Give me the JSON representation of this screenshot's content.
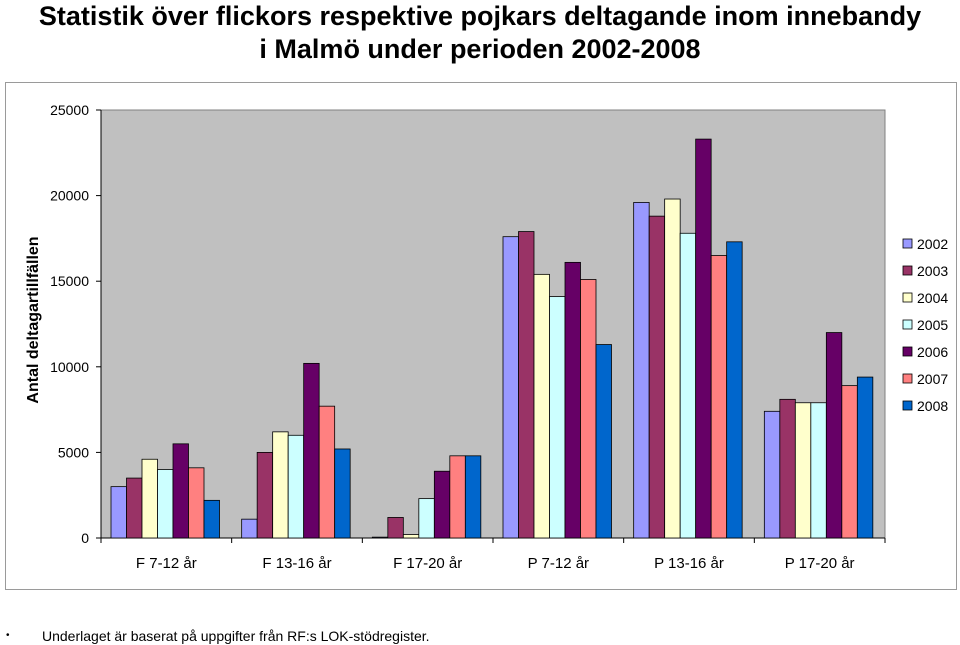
{
  "chart_data": {
    "type": "bar",
    "title_line1": "Statistik över flickors respektive pojkars deltagande inom innebandy",
    "title_line2": "i Malmö under perioden 2002-2008",
    "ylabel": "Antal deltagartillfällen",
    "xlabel": "",
    "ylim": [
      0,
      25000
    ],
    "yticks": [
      0,
      5000,
      10000,
      15000,
      20000,
      25000
    ],
    "grid": false,
    "legend_position": "right",
    "categories": [
      "F 7-12 år",
      "F 13-16 år",
      "F 17-20 år",
      "P 7-12 år",
      "P 13-16 år",
      "P 17-20 år"
    ],
    "series": [
      {
        "name": "2002",
        "color": "#9999ff",
        "values": [
          3000,
          1100,
          50,
          17600,
          19600,
          7400
        ]
      },
      {
        "name": "2003",
        "color": "#993366",
        "values": [
          3500,
          5000,
          1200,
          17900,
          18800,
          8100
        ]
      },
      {
        "name": "2004",
        "color": "#ffffcc",
        "values": [
          4600,
          6200,
          200,
          15400,
          19800,
          7900
        ]
      },
      {
        "name": "2005",
        "color": "#ccffff",
        "values": [
          4000,
          6000,
          2300,
          14100,
          17800,
          7900
        ]
      },
      {
        "name": "2006",
        "color": "#660066",
        "values": [
          5500,
          10200,
          3900,
          16100,
          23300,
          12000
        ]
      },
      {
        "name": "2007",
        "color": "#ff8080",
        "values": [
          4100,
          7700,
          4800,
          15100,
          16500,
          8900
        ]
      },
      {
        "name": "2008",
        "color": "#0066cc",
        "values": [
          2200,
          5200,
          4800,
          11300,
          17300,
          9400
        ]
      }
    ],
    "plot_background": "#c0c0c0"
  },
  "footnote": {
    "bullet": "•",
    "text": "Underlaget är baserat på uppgifter från RF:s LOK-stödregister."
  }
}
